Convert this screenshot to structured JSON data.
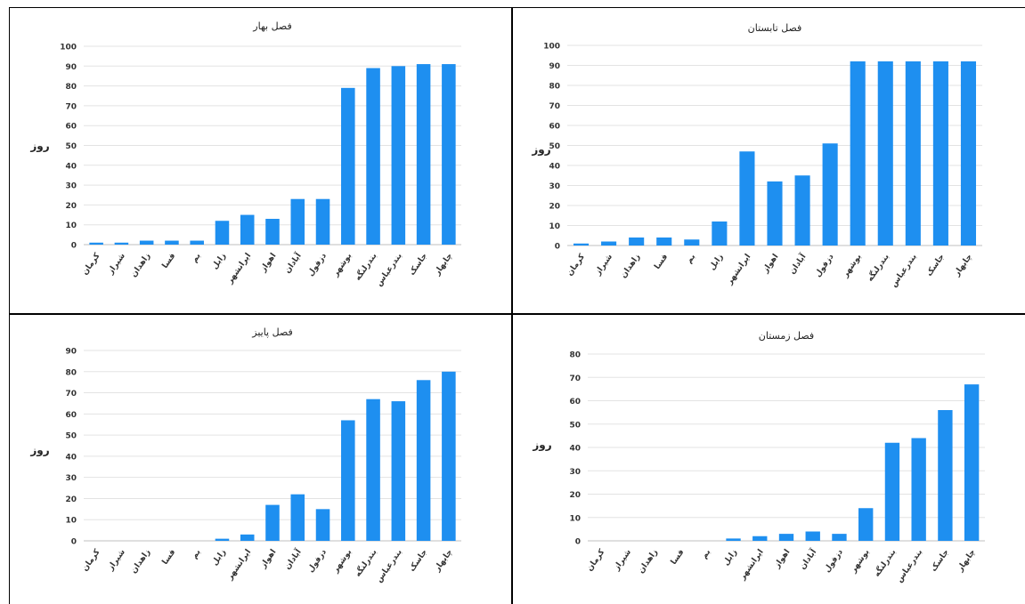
{
  "chart_data": [
    {
      "type": "bar",
      "title": "فصل بهار",
      "ylabel": "روز",
      "xlabel": "",
      "ylim": [
        0,
        100
      ],
      "yticks": [
        0,
        10,
        20,
        30,
        40,
        50,
        60,
        70,
        80,
        90,
        100
      ],
      "grid": true,
      "color": "#1e8ff0",
      "categories": [
        "کرمان",
        "شیراز",
        "زاهدان",
        "فسا",
        "بم",
        "زابل",
        "ایرانشهر",
        "اهواز",
        "آبادان",
        "دزفول",
        "بوشهر",
        "بندرلنگه",
        "بندرعباس",
        "جاسک",
        "چابهار"
      ],
      "values": [
        1,
        1,
        2,
        2,
        2,
        12,
        15,
        13,
        23,
        23,
        79,
        89,
        90,
        91,
        91
      ]
    },
    {
      "type": "bar",
      "title": "فصل تابستان",
      "ylabel": "روز",
      "xlabel": "",
      "ylim": [
        0,
        100
      ],
      "yticks": [
        0,
        10,
        20,
        30,
        40,
        50,
        60,
        70,
        80,
        90,
        100
      ],
      "grid": true,
      "color": "#1e8ff0",
      "categories": [
        "کرمان",
        "شیراز",
        "زاهدان",
        "فسا",
        "بم",
        "زابل",
        "ایرانشهر",
        "اهواز",
        "آبادان",
        "دزفول",
        "بوشهر",
        "بندرلنگه",
        "بندرعباس",
        "جاسک",
        "چابهار"
      ],
      "values": [
        1,
        2,
        4,
        4,
        3,
        12,
        47,
        32,
        35,
        51,
        92,
        92,
        92,
        92,
        92
      ]
    },
    {
      "type": "bar",
      "title": "فصل پاییز",
      "ylabel": "روز",
      "xlabel": "",
      "ylim": [
        0,
        90
      ],
      "yticks": [
        0,
        10,
        20,
        30,
        40,
        50,
        60,
        70,
        80,
        90
      ],
      "grid": true,
      "color": "#1e8ff0",
      "categories": [
        "کرمان",
        "شیراز",
        "زاهدان",
        "فسا",
        "بم",
        "زابل",
        "ایرانشهر",
        "اهواز",
        "آبادان",
        "دزفول",
        "بوشهر",
        "بندرلنگه",
        "بندرعباس",
        "جاسک",
        "چابهار"
      ],
      "values": [
        0,
        0,
        0,
        0,
        0,
        1,
        3,
        17,
        22,
        15,
        57,
        67,
        66,
        76,
        80
      ]
    },
    {
      "type": "bar",
      "title": "فصل زمستان",
      "ylabel": "روز",
      "xlabel": "",
      "ylim": [
        0,
        80
      ],
      "yticks": [
        0,
        10,
        20,
        30,
        40,
        50,
        60,
        70,
        80
      ],
      "grid": true,
      "color": "#1e8ff0",
      "categories": [
        "کرمان",
        "شیراز",
        "زاهدان",
        "فسا",
        "بم",
        "زابل",
        "ایرانشهر",
        "اهواز",
        "آبادان",
        "دزفول",
        "بوشهر",
        "بندرلنگه",
        "بندرعباس",
        "جاسک",
        "چابهار"
      ],
      "values": [
        0,
        0,
        0,
        0,
        0,
        1,
        2,
        3,
        4,
        3,
        14,
        42,
        44,
        56,
        67
      ]
    }
  ]
}
